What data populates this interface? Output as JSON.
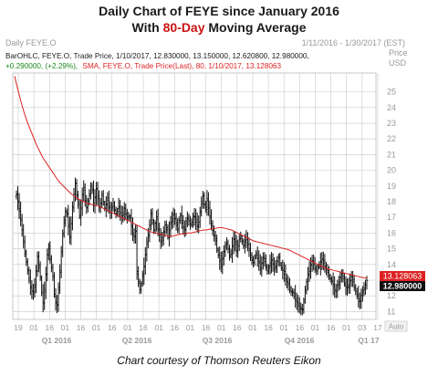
{
  "title": {
    "line1": "Daily Chart of FEYE since January 2016",
    "line2_pre": "With ",
    "line2_hl": "80-Day",
    "line2_post": " Moving Average"
  },
  "caption": "Chart courtesy of Thomson Reuters Eikon",
  "header": {
    "left": "Daily FEYE.O",
    "right": "1/11/2016 - 1/30/2017 (EST)",
    "price": "Price",
    "usd": "USD",
    "legend_line1": "BarOHLC, FEYE.O, Trade Price, 1/10/2017, 12.830000, 13.150000, 12.620800, 12.980000,",
    "legend_line2_change": "+0.290000, (+2.29%),",
    "legend_line2_sma": "SMA, FEYE.O, Trade Price(Last), 80, 1/10/2017, 13.128063",
    "auto": "Auto"
  },
  "colors": {
    "bars": "#111111",
    "sma": "#dd2222",
    "grid": "#c8c8c8",
    "change": "#1a8a1a",
    "badge_sma": "#dd2222",
    "badge_price": "#111111",
    "axis_text": "#999999"
  },
  "chart_data": {
    "type": "ohlc",
    "x_tick_labels": [
      "19",
      "01",
      "16",
      "01",
      "16",
      "01",
      "16",
      "01",
      "16",
      "01",
      "16",
      "01",
      "16",
      "01",
      "16",
      "01",
      "16",
      "01",
      "16",
      "01",
      "16",
      "01",
      "03",
      "17"
    ],
    "quarter_labels": [
      "Q1 2016",
      "Q2 2016",
      "Q3 2016",
      "Q4 2016",
      "Q1 17"
    ],
    "y_ticks": [
      11,
      12,
      13,
      14,
      15,
      16,
      17,
      18,
      19,
      20,
      21,
      22,
      23,
      24,
      25
    ],
    "ylim": [
      10.5,
      26.2
    ],
    "last_bar": {
      "date": "1/10/2017",
      "open": 12.83,
      "high": 13.15,
      "low": 12.6208,
      "close": 12.98
    },
    "sma": {
      "period": 80,
      "last": 13.128063
    },
    "badges": {
      "sma": "13.128063",
      "close": "12.980000"
    },
    "close_series": [
      18.5,
      18.0,
      17.4,
      16.9,
      16.2,
      15.4,
      14.8,
      14.2,
      13.6,
      13.0,
      12.6,
      12.3,
      12.2,
      12.7,
      13.6,
      14.5,
      13.8,
      13.2,
      12.2,
      11.5,
      12.4,
      13.4,
      14.6,
      15.0,
      14.4,
      13.8,
      13.2,
      12.1,
      11.6,
      11.4,
      12.4,
      13.6,
      14.8,
      15.9,
      16.8,
      17.4,
      17.2,
      16.4,
      15.8,
      16.6,
      17.6,
      18.5,
      19.2,
      18.4,
      17.8,
      17.1,
      17.6,
      18.4,
      18.9,
      18.1,
      17.6,
      17.9,
      18.5,
      19.0,
      18.7,
      17.9,
      18.3,
      18.8,
      18.2,
      17.7,
      17.9,
      18.4,
      18.0,
      17.6,
      17.8,
      18.1,
      17.7,
      17.3,
      17.6,
      17.9,
      17.5,
      17.2,
      17.4,
      17.7,
      17.3,
      17.0,
      17.3,
      17.6,
      17.2,
      16.9,
      17.1,
      17.0,
      16.4,
      16.0,
      15.8,
      16.1,
      13.4,
      12.9,
      12.4,
      12.7,
      13.4,
      13.9,
      14.6,
      15.3,
      15.9,
      16.5,
      17.2,
      16.8,
      16.2,
      16.6,
      16.9,
      16.3,
      15.9,
      15.4,
      15.7,
      16.1,
      16.5,
      16.2,
      15.8,
      16.2,
      16.6,
      16.9,
      17.2,
      16.9,
      16.5,
      16.3,
      16.8,
      17.1,
      16.8,
      16.4,
      16.2,
      16.6,
      17.0,
      16.8,
      16.5,
      16.7,
      17.1,
      17.0,
      16.7,
      16.5,
      16.7,
      17.3,
      18.0,
      18.4,
      17.8,
      17.5,
      18.2,
      17.6,
      17.0,
      16.6,
      16.2,
      15.8,
      15.5,
      15.0,
      14.6,
      14.2,
      14.0,
      14.4,
      14.8,
      15.1,
      15.4,
      15.0,
      14.5,
      14.8,
      15.2,
      15.6,
      15.3,
      14.9,
      15.2,
      15.6,
      15.8,
      15.5,
      15.2,
      15.4,
      15.7,
      15.3,
      14.9,
      14.6,
      14.3,
      14.1,
      14.4,
      14.7,
      14.4,
      14.1,
      13.8,
      14.1,
      14.4,
      14.2,
      13.9,
      13.6,
      13.8,
      14.1,
      14.3,
      14.0,
      13.7,
      13.9,
      14.2,
      14.4,
      14.1,
      13.8,
      13.6,
      13.4,
      13.1,
      12.9,
      12.7,
      12.5,
      12.3,
      12.2,
      12.0,
      11.8,
      11.6,
      11.4,
      11.3,
      11.2,
      11.1,
      11.6,
      12.4,
      12.9,
      13.3,
      13.7,
      14.0,
      14.2,
      14.0,
      13.8,
      13.6,
      13.8,
      14.0,
      14.2,
      14.3,
      14.1,
      13.9,
      13.7,
      13.5,
      13.3,
      13.1,
      12.9,
      12.6,
      12.4,
      12.3,
      12.6,
      12.9,
      13.2,
      13.4,
      13.1,
      12.8,
      12.6,
      12.5,
      12.7,
      13.0,
      13.2,
      12.9,
      12.6,
      12.3,
      12.0,
      11.8,
      11.7,
      12.0,
      12.2,
      12.5,
      12.7,
      12.98
    ],
    "sma_series": [
      26.0,
      25.2,
      24.4,
      23.7,
      23.1,
      22.6,
      22.1,
      21.6,
      21.2,
      20.8,
      20.5,
      20.2,
      19.9,
      19.6,
      19.3,
      19.1,
      18.9,
      18.7,
      18.5,
      18.35,
      18.2,
      18.1,
      18.0,
      17.9,
      17.85,
      17.8,
      17.75,
      17.7,
      17.6,
      17.5,
      17.4,
      17.3,
      17.2,
      17.1,
      17.0,
      16.9,
      16.8,
      16.7,
      16.6,
      16.5,
      16.4,
      16.3,
      16.2,
      16.1,
      16.05,
      16.0,
      15.95,
      15.9,
      15.85,
      15.8,
      15.8,
      15.85,
      15.9,
      15.95,
      15.95,
      16.0,
      16.0,
      16.05,
      16.1,
      16.15,
      16.2,
      16.2,
      16.25,
      16.3,
      16.3,
      16.35,
      16.35,
      16.3,
      16.25,
      16.2,
      16.1,
      16.0,
      15.9,
      15.8,
      15.7,
      15.6,
      15.5,
      15.45,
      15.4,
      15.35,
      15.3,
      15.25,
      15.2,
      15.15,
      15.1,
      15.05,
      15.0,
      14.95,
      14.85,
      14.75,
      14.65,
      14.55,
      14.45,
      14.35,
      14.25,
      14.15,
      14.05,
      13.95,
      13.85,
      13.75,
      13.7,
      13.65,
      13.6,
      13.55,
      13.5,
      13.45,
      13.4,
      13.35,
      13.3,
      13.25,
      13.2,
      13.15,
      13.128
    ]
  }
}
